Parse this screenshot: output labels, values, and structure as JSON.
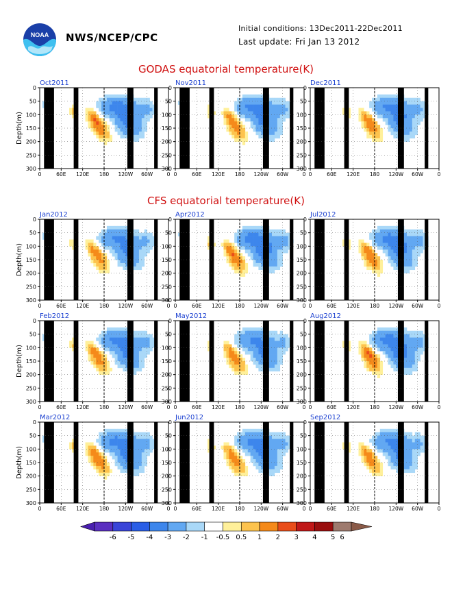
{
  "header": {
    "agency": "NWS/NCEP/CPC",
    "initial_conditions": "Initial conditions: 13Dec2011-22Dec2011",
    "last_update": "Last update: Fri Jan 13 2012",
    "logo_text": "NOAA"
  },
  "sections": {
    "godas_title": "GODAS equatorial temperature(K)",
    "cfs_title": "CFS equatorial temperature(K)"
  },
  "chart_data": {
    "type": "heatmap",
    "ylabel": "Depth(m)",
    "xticks": [
      "0",
      "60E",
      "120E",
      "180",
      "120W",
      "60W",
      "0"
    ],
    "yticks": [
      "0",
      "50",
      "100",
      "150",
      "200",
      "250",
      "300"
    ],
    "ylim": [
      300,
      0
    ],
    "panels": [
      {
        "label": "Oct2011",
        "group": "GODAS"
      },
      {
        "label": "Nov2011",
        "group": "GODAS"
      },
      {
        "label": "Dec2011",
        "group": "GODAS"
      },
      {
        "label": "Jan2012",
        "group": "CFS"
      },
      {
        "label": "Apr2012",
        "group": "CFS"
      },
      {
        "label": "Jul2012",
        "group": "CFS"
      },
      {
        "label": "Feb2012",
        "group": "CFS"
      },
      {
        "label": "May2012",
        "group": "CFS"
      },
      {
        "label": "Aug2012",
        "group": "CFS"
      },
      {
        "label": "Mar2012",
        "group": "CFS"
      },
      {
        "label": "Jun2012",
        "group": "CFS"
      },
      {
        "label": "Sep2012",
        "group": "CFS"
      }
    ],
    "colorbar": {
      "labels": [
        "-6",
        "-5",
        "-4",
        "-3",
        "-2",
        "-1",
        "-0.5",
        "0.5",
        "1",
        "2",
        "3",
        "4",
        "5",
        "6"
      ],
      "colors": [
        "#5a2fc0",
        "#3a45d8",
        "#2a5ee6",
        "#3d86ec",
        "#62a8f2",
        "#a9d8f8",
        "#ffffff",
        "#fff09a",
        "#fdc34d",
        "#f58a1a",
        "#e94d1a",
        "#c01818",
        "#9a0e0e",
        "#9e7a6e"
      ],
      "low_end_color": "#4a1fb0",
      "high_end_color": "#8a5a48"
    }
  }
}
